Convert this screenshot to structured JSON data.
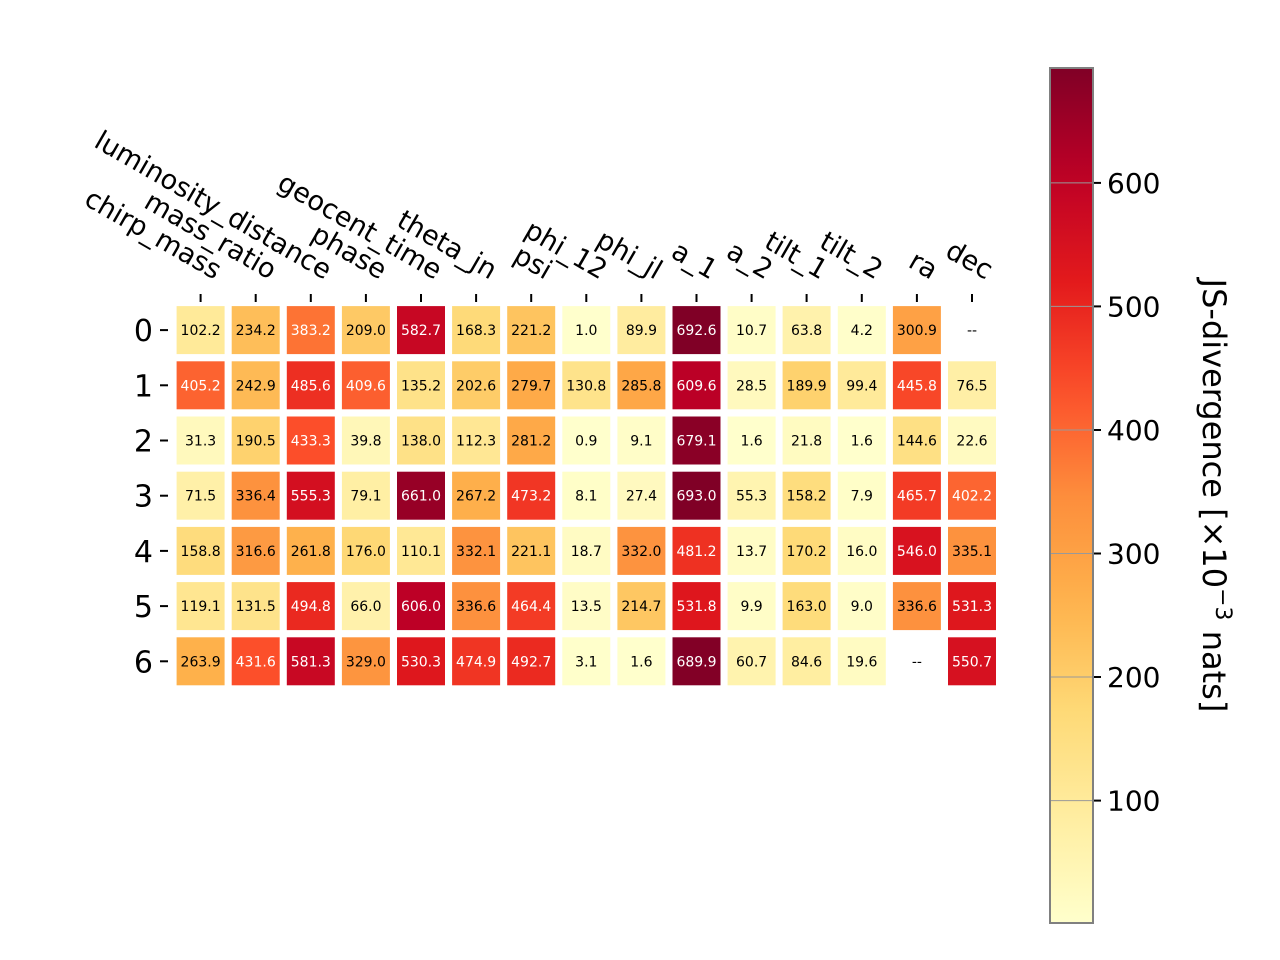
{
  "chart_data": {
    "type": "heatmap",
    "columns": [
      "chirp_mass",
      "mass_ratio",
      "luminosity_distance",
      "phase",
      "geocent_time",
      "theta_jn",
      "psi",
      "phi_12",
      "phi_jl",
      "a_1",
      "a_2",
      "tilt_1",
      "tilt_2",
      "ra",
      "dec"
    ],
    "rows": [
      "0",
      "1",
      "2",
      "3",
      "4",
      "5",
      "6"
    ],
    "values": [
      [
        102.2,
        234.2,
        383.2,
        209.0,
        582.7,
        168.3,
        221.2,
        1.0,
        89.9,
        692.6,
        10.7,
        63.8,
        4.2,
        300.9,
        null
      ],
      [
        405.2,
        242.9,
        485.6,
        409.6,
        135.2,
        202.6,
        279.7,
        130.8,
        285.8,
        609.6,
        28.5,
        189.9,
        99.4,
        445.8,
        76.5
      ],
      [
        31.3,
        190.5,
        433.3,
        39.8,
        138.0,
        112.3,
        281.2,
        0.9,
        9.1,
        679.1,
        1.6,
        21.8,
        1.6,
        144.6,
        22.6
      ],
      [
        71.5,
        336.4,
        555.3,
        79.1,
        661.0,
        267.2,
        473.2,
        8.1,
        27.4,
        693.0,
        55.3,
        158.2,
        7.9,
        465.7,
        402.2
      ],
      [
        158.8,
        316.6,
        261.8,
        176.0,
        110.1,
        332.1,
        221.1,
        18.7,
        332.0,
        481.2,
        13.7,
        170.2,
        16.0,
        546.0,
        335.1
      ],
      [
        119.1,
        131.5,
        494.8,
        66.0,
        606.0,
        336.6,
        464.4,
        13.5,
        214.7,
        531.8,
        9.9,
        163.0,
        9.0,
        336.6,
        531.3
      ],
      [
        263.9,
        431.6,
        581.3,
        329.0,
        530.3,
        474.9,
        492.7,
        3.1,
        1.6,
        689.9,
        60.7,
        84.6,
        19.6,
        null,
        550.7
      ]
    ],
    "missing_label": "--",
    "colormap": "YlOrRd",
    "vmin": 0.9,
    "vmax": 693.0,
    "colorbar": {
      "label": "JS-divergence [×10",
      "label_exp": "−3",
      "label_tail": " nats]",
      "ticks": [
        100,
        200,
        300,
        400,
        500,
        600
      ]
    }
  }
}
